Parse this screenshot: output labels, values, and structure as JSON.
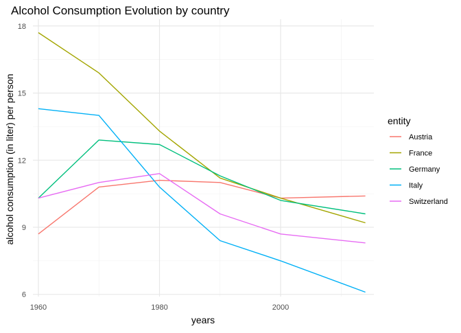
{
  "chart_data": {
    "type": "line",
    "title": "Alcohol Consumption Evolution by country",
    "xlabel": "years",
    "ylabel": "alcohol consumption (in liter) per person",
    "legend_title": "entity",
    "legend_position": "right",
    "grid": true,
    "xlim": [
      1959.1,
      2015.4
    ],
    "ylim": [
      5.9,
      18.3
    ],
    "x_ticks": [
      1960,
      1980,
      2000
    ],
    "y_ticks": [
      6,
      9,
      12,
      15,
      18
    ],
    "x": [
      1960,
      1970,
      1980,
      1990,
      2000,
      2014
    ],
    "series": [
      {
        "name": "Austria",
        "color": "#F8766D",
        "values": [
          8.7,
          10.8,
          11.1,
          11.0,
          10.3,
          10.4
        ]
      },
      {
        "name": "France",
        "color": "#A3A500",
        "values": [
          17.7,
          15.9,
          13.3,
          11.2,
          10.3,
          9.2
        ]
      },
      {
        "name": "Germany",
        "color": "#00BF7D",
        "values": [
          10.3,
          12.9,
          12.7,
          11.3,
          10.2,
          9.6
        ]
      },
      {
        "name": "Italy",
        "color": "#00B0F6",
        "values": [
          14.3,
          14.0,
          10.8,
          8.4,
          7.5,
          6.1
        ]
      },
      {
        "name": "Switzerland",
        "color": "#E76BF3",
        "values": [
          10.3,
          11.0,
          11.4,
          9.6,
          8.7,
          8.3
        ]
      }
    ]
  }
}
